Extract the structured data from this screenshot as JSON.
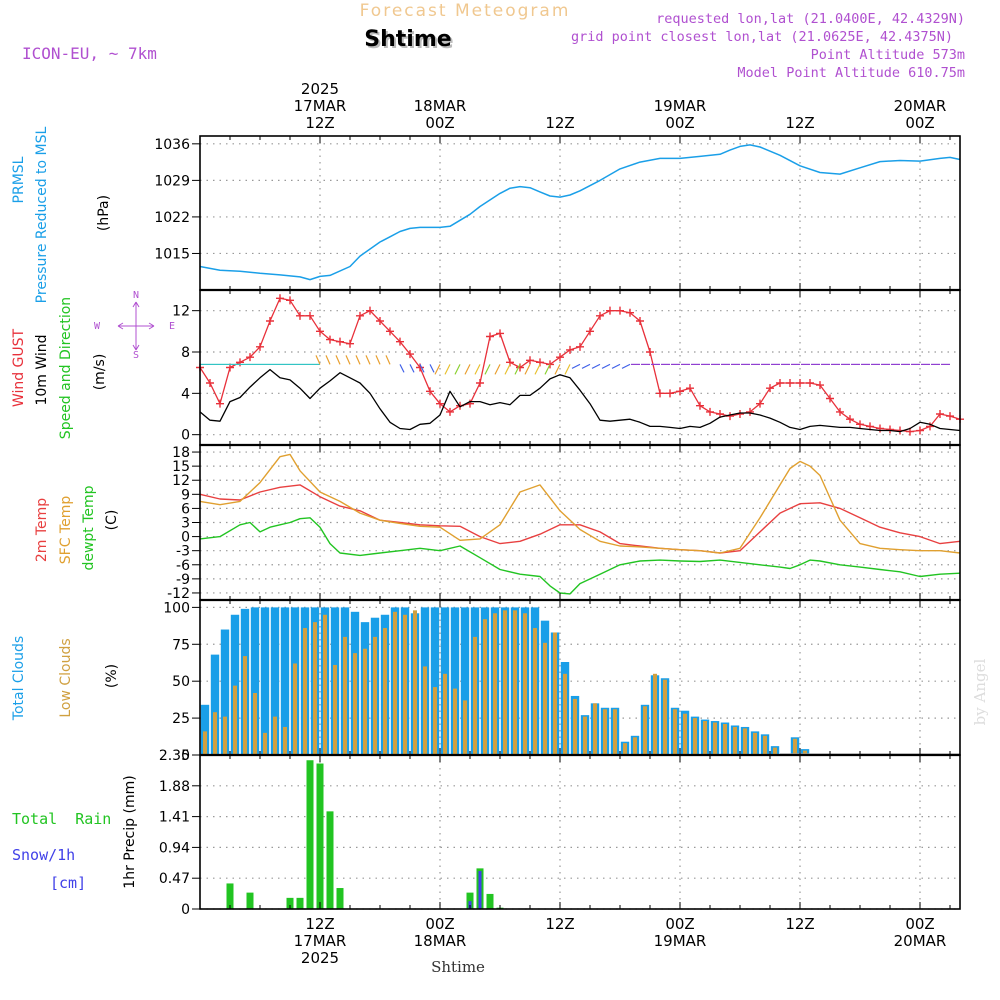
{
  "header": {
    "title": "Forecast Meteogram",
    "location": "Shtime",
    "model": "ICON-EU, ~ 7km",
    "info_lines": [
      "requested lon,lat (21.0400E, 42.4329N)",
      "grid point closest lon,lat (21.0625E, 42.4375N)",
      "Point Altitude 573m",
      "Model Point Altitude 610.75m"
    ],
    "footer_location": "Shtime",
    "watermark": "by Angel"
  },
  "colors": {
    "pressure": "#1a9fe8",
    "gust": "#e8303a",
    "wind": "#000000",
    "temp2m": "#e84040",
    "sfc": "#e0a030",
    "dewpt": "#22c422",
    "total_clouds": "#1a9fe8",
    "low_clouds": "#d0a040",
    "rain": "#22c422",
    "snow": "#4040e8",
    "title": "#f0c890",
    "info": "#b050d0"
  },
  "time_axis": {
    "top_labels": [
      {
        "t": 12,
        "lines": [
          "2025",
          "17MAR",
          "12Z"
        ]
      },
      {
        "t": 24,
        "lines": [
          "18MAR",
          "00Z"
        ]
      },
      {
        "t": 36,
        "lines": [
          "12Z"
        ]
      },
      {
        "t": 48,
        "lines": [
          "19MAR",
          "00Z"
        ]
      },
      {
        "t": 60,
        "lines": [
          "12Z"
        ]
      },
      {
        "t": 72,
        "lines": [
          "20MAR",
          "00Z"
        ]
      }
    ],
    "bottom_labels": [
      {
        "t": 12,
        "lines": [
          "12Z",
          "17MAR",
          "2025"
        ]
      },
      {
        "t": 24,
        "lines": [
          "00Z",
          "18MAR"
        ]
      },
      {
        "t": 36,
        "lines": [
          "12Z"
        ]
      },
      {
        "t": 48,
        "lines": [
          "00Z",
          "19MAR"
        ]
      },
      {
        "t": 60,
        "lines": [
          "12Z"
        ]
      },
      {
        "t": 72,
        "lines": [
          "00Z",
          "20MAR"
        ]
      }
    ]
  },
  "chart_data": [
    {
      "type": "line",
      "panel": "pressure",
      "labels": [
        "PRMSL",
        "Pressure Reduced to MSL"
      ],
      "unit": "(hPa)",
      "yticks": [
        1015,
        1022,
        1029,
        1036
      ],
      "ylim": [
        1008,
        1037.5
      ],
      "series": [
        {
          "x": [
            0,
            2,
            4,
            6,
            8,
            10,
            11,
            12,
            13,
            15,
            16,
            18,
            19,
            20,
            21,
            22,
            24,
            25,
            27,
            28,
            30,
            31,
            32,
            33,
            34,
            35,
            36,
            37,
            38,
            40,
            42,
            44,
            46,
            48,
            50,
            52,
            53,
            54,
            55,
            56,
            58,
            60,
            62,
            64,
            66,
            68,
            70,
            72,
            74,
            75,
            76
          ],
          "y": [
            1012.5,
            1011.8,
            1011.6,
            1011.2,
            1010.9,
            1010.5,
            1010.0,
            1010.6,
            1010.8,
            1012.5,
            1014.5,
            1017.2,
            1018.2,
            1019.2,
            1019.8,
            1020.0,
            1020.0,
            1020.2,
            1022.5,
            1024.0,
            1026.5,
            1027.5,
            1027.8,
            1027.6,
            1026.8,
            1026.0,
            1025.8,
            1026.2,
            1027.0,
            1029.0,
            1031.2,
            1032.5,
            1033.2,
            1033.2,
            1033.6,
            1034.0,
            1034.8,
            1035.5,
            1035.8,
            1035.4,
            1033.8,
            1031.8,
            1030.5,
            1030.2,
            1031.4,
            1032.6,
            1032.8,
            1032.7,
            1033.2,
            1033.4,
            1033.0
          ]
        }
      ]
    },
    {
      "type": "line",
      "panel": "wind",
      "labels": [
        "Wind GUST",
        "10m Wind",
        "Speed and Direction"
      ],
      "unit": "(m/s)",
      "compass": [
        "N",
        "W",
        "E",
        "S"
      ],
      "yticks": [
        0,
        4,
        8,
        12
      ],
      "ylim": [
        -1,
        14
      ],
      "series": [
        {
          "name": "Wind GUST",
          "x": [
            0,
            1,
            2,
            3,
            4,
            5,
            6,
            7,
            8,
            9,
            10,
            11,
            12,
            13,
            14,
            15,
            16,
            17,
            18,
            19,
            20,
            21,
            22,
            23,
            24,
            25,
            26,
            27,
            28,
            29,
            30,
            31,
            32,
            33,
            34,
            35,
            36,
            37,
            38,
            39,
            40,
            41,
            42,
            43,
            44,
            45,
            46,
            47,
            48,
            49,
            50,
            51,
            52,
            53,
            54,
            55,
            56,
            57,
            58,
            59,
            60,
            61,
            62,
            63,
            64,
            65,
            66,
            67,
            68,
            69,
            70,
            71,
            72,
            73,
            74,
            75,
            76
          ],
          "y": [
            6.5,
            5.0,
            3.0,
            6.5,
            7.0,
            7.5,
            8.5,
            11.0,
            13.2,
            13.0,
            11.5,
            11.5,
            10.0,
            9.2,
            9.0,
            8.8,
            11.5,
            12.0,
            11.0,
            10.0,
            9.0,
            7.8,
            6.5,
            4.2,
            3.0,
            2.2,
            2.8,
            3.0,
            5.0,
            9.5,
            9.8,
            7.0,
            6.5,
            7.2,
            7.0,
            6.8,
            7.5,
            8.2,
            8.5,
            10.0,
            11.5,
            12.0,
            12.0,
            11.8,
            11.0,
            8.0,
            4.0,
            4.0,
            4.2,
            4.5,
            2.8,
            2.2,
            2.0,
            1.8,
            2.0,
            2.2,
            3.0,
            4.5,
            5.0,
            5.0,
            5.0,
            5.0,
            4.8,
            3.5,
            2.2,
            1.5,
            1.0,
            0.8,
            0.6,
            0.5,
            0.4,
            0.3,
            0.4,
            0.8,
            2.0,
            1.8,
            1.5
          ]
        },
        {
          "name": "10m Wind",
          "x": [
            0,
            1,
            2,
            3,
            4,
            5,
            6,
            7,
            8,
            9,
            10,
            11,
            12,
            13,
            14,
            15,
            16,
            17,
            18,
            19,
            20,
            21,
            22,
            23,
            24,
            25,
            26,
            27,
            28,
            29,
            30,
            31,
            32,
            33,
            34,
            35,
            36,
            37,
            38,
            39,
            40,
            41,
            42,
            43,
            44,
            45,
            46,
            47,
            48,
            49,
            50,
            51,
            52,
            53,
            54,
            55,
            56,
            57,
            58,
            59,
            60,
            61,
            62,
            63,
            64,
            65,
            66,
            67,
            68,
            69,
            70,
            71,
            72,
            73,
            74,
            75,
            76
          ],
          "y": [
            2.2,
            1.4,
            1.3,
            3.2,
            3.6,
            4.6,
            5.5,
            6.3,
            5.5,
            5.3,
            4.5,
            3.5,
            4.5,
            5.2,
            6.0,
            5.5,
            5.0,
            4.0,
            2.5,
            1.2,
            0.6,
            0.5,
            1.0,
            1.1,
            1.9,
            4.2,
            2.7,
            3.2,
            3.2,
            2.9,
            3.1,
            2.9,
            3.8,
            3.8,
            4.5,
            5.4,
            5.8,
            5.5,
            4.3,
            3.0,
            1.4,
            1.3,
            1.4,
            1.5,
            1.2,
            0.8,
            0.8,
            0.7,
            0.6,
            0.8,
            0.7,
            1.1,
            1.7,
            1.9,
            2.1,
            2.1,
            1.9,
            1.6,
            1.2,
            0.7,
            0.5,
            0.8,
            0.9,
            0.8,
            0.7,
            0.7,
            0.6,
            0.5,
            0.4,
            0.4,
            0.3,
            0.6,
            1.2,
            1.0,
            0.6,
            0.5,
            0.4
          ]
        }
      ]
    },
    {
      "type": "line",
      "panel": "temperature",
      "labels": [
        "2m Temp",
        "SFC Temp",
        "dewpt Temp"
      ],
      "unit": "(C)",
      "yticks": [
        -12,
        -9,
        -6,
        -3,
        0,
        3,
        6,
        9,
        12,
        15,
        18
      ],
      "ylim": [
        -13.5,
        19.5
      ],
      "series": [
        {
          "name": "2m Temp",
          "x": [
            0,
            2,
            4,
            6,
            8,
            10,
            12,
            14,
            16,
            18,
            20,
            22,
            24,
            26,
            28,
            30,
            32,
            34,
            36,
            38,
            40,
            42,
            44,
            46,
            48,
            50,
            52,
            54,
            56,
            58,
            60,
            62,
            64,
            66,
            68,
            70,
            72,
            74,
            76
          ],
          "y": [
            9.0,
            8.0,
            7.8,
            9.5,
            10.5,
            11.0,
            8.5,
            6.5,
            5.5,
            3.5,
            3.0,
            2.5,
            2.3,
            2.2,
            0,
            -1.5,
            -1.0,
            0.5,
            2.5,
            2.5,
            1.0,
            -1.5,
            -2.0,
            -2.5,
            -2.8,
            -3.0,
            -3.5,
            -3.0,
            1.0,
            5.0,
            7.0,
            7.2,
            6.0,
            4.0,
            2.0,
            0.8,
            0.0,
            -1.5,
            -1.0
          ]
        },
        {
          "name": "SFC Temp",
          "x": [
            0,
            2,
            4,
            6,
            8,
            9,
            10,
            12,
            14,
            16,
            18,
            20,
            22,
            24,
            26,
            28,
            30,
            31,
            32,
            34,
            36,
            38,
            40,
            42,
            44,
            46,
            48,
            50,
            52,
            54,
            56,
            58,
            59,
            60,
            61,
            62,
            64,
            66,
            68,
            70,
            72,
            74,
            76
          ],
          "y": [
            7.5,
            6.8,
            7.5,
            11.5,
            17.0,
            17.5,
            14.0,
            9.5,
            7.5,
            5.0,
            3.5,
            2.8,
            2.2,
            2.0,
            -0.8,
            -0.5,
            2.5,
            6.0,
            9.5,
            11.0,
            5.5,
            1.5,
            -1.0,
            -2.0,
            -2.2,
            -2.5,
            -2.8,
            -3.0,
            -3.5,
            -2.5,
            4.0,
            11.0,
            14.5,
            16.0,
            15.0,
            13.0,
            3.5,
            -1.5,
            -2.5,
            -2.8,
            -3.0,
            -3.0,
            -3.5
          ]
        },
        {
          "name": "dewpt Temp",
          "x": [
            0,
            2,
            4,
            5,
            6,
            7,
            8,
            9,
            10,
            11,
            12,
            13,
            14,
            16,
            18,
            20,
            22,
            24,
            26,
            28,
            30,
            32,
            34,
            35,
            36,
            37,
            38,
            40,
            42,
            44,
            46,
            48,
            50,
            52,
            54,
            56,
            58,
            59,
            60,
            61,
            62,
            64,
            66,
            68,
            70,
            72,
            74,
            76
          ],
          "y": [
            -0.5,
            0.0,
            2.5,
            3.0,
            1.0,
            2.0,
            2.5,
            3.0,
            3.8,
            4.0,
            2.0,
            -1.5,
            -3.5,
            -4.0,
            -3.5,
            -3.0,
            -2.5,
            -3.0,
            -2.0,
            -4.5,
            -7.0,
            -8.0,
            -8.5,
            -10.5,
            -12.0,
            -12.2,
            -10.0,
            -8.0,
            -6.0,
            -5.2,
            -5.0,
            -5.2,
            -5.3,
            -5.0,
            -5.5,
            -6.0,
            -6.5,
            -6.8,
            -6.0,
            -5.0,
            -5.2,
            -6.0,
            -6.5,
            -7.0,
            -7.5,
            -8.5,
            -8.0,
            -7.8
          ]
        }
      ]
    },
    {
      "type": "bar",
      "panel": "clouds",
      "labels": [
        "Total Clouds",
        "Low Clouds"
      ],
      "unit": "(%)",
      "yticks": [
        0,
        25,
        50,
        75,
        100
      ],
      "ylim": [
        0,
        105
      ],
      "x": [
        0,
        1,
        2,
        3,
        4,
        5,
        6,
        7,
        8,
        9,
        10,
        11,
        12,
        13,
        14,
        15,
        16,
        17,
        18,
        19,
        20,
        21,
        22,
        23,
        24,
        25,
        26,
        27,
        28,
        29,
        30,
        31,
        32,
        33,
        34,
        35,
        36,
        37,
        38,
        39,
        40,
        41,
        42,
        43,
        44,
        45,
        46,
        47,
        48,
        49,
        50,
        51,
        52,
        53,
        54,
        55,
        56,
        57,
        58,
        59,
        60,
        61,
        62,
        63,
        64,
        65,
        66,
        67,
        68,
        69,
        70,
        71,
        72,
        73,
        74,
        75
      ],
      "series": [
        {
          "name": "Total Clouds",
          "values": [
            34,
            68,
            85,
            95,
            99,
            100,
            100,
            100,
            100,
            100,
            100,
            100,
            100,
            100,
            100,
            97,
            90,
            93,
            95,
            100,
            100,
            96,
            100,
            100,
            100,
            100,
            100,
            100,
            100,
            100,
            100,
            100,
            100,
            100,
            91,
            83,
            63,
            40,
            27,
            35,
            32,
            32,
            9,
            13,
            34,
            54,
            52,
            32,
            30,
            26,
            24,
            23,
            22,
            20,
            19,
            16,
            14,
            6,
            0,
            12,
            4,
            0,
            0,
            0,
            0,
            0,
            0,
            0,
            0,
            0,
            0,
            0,
            0,
            0,
            0,
            0
          ]
        },
        {
          "name": "Low Clouds",
          "values": [
            16,
            29,
            26,
            47,
            67,
            42,
            15,
            26,
            19,
            62,
            86,
            90,
            95,
            61,
            80,
            69,
            72,
            80,
            86,
            97,
            95,
            98,
            60,
            46,
            55,
            45,
            37,
            80,
            92,
            96,
            98,
            98,
            96,
            86,
            76,
            83,
            55,
            38,
            26,
            35,
            31,
            31,
            8,
            12,
            33,
            55,
            51,
            31,
            28,
            25,
            23,
            22,
            21,
            19,
            18,
            15,
            13,
            5,
            0,
            11,
            3,
            0,
            0,
            0,
            0,
            0,
            0,
            0,
            0,
            0,
            0,
            0,
            0,
            0,
            0,
            0
          ]
        }
      ]
    },
    {
      "type": "bar",
      "panel": "precip",
      "labels": [
        "Total  Rain",
        "Snow/1h",
        "[cm]"
      ],
      "unit": "1hr Precip (mm)",
      "ytick_labels": [
        "0",
        "0.47",
        "0.94",
        "1.41",
        "1.88",
        "2.35"
      ],
      "ylim": [
        0,
        2.35
      ],
      "x": [
        3,
        5,
        9,
        10,
        11,
        12,
        13,
        14,
        27,
        28,
        29,
        30
      ],
      "series": [
        {
          "name": "Total Rain",
          "values": [
            0.39,
            0.25,
            0.17,
            0.17,
            2.27,
            2.22,
            1.49,
            0.32,
            0.25,
            0.62,
            0.23,
            0.02
          ]
        },
        {
          "name": "Snow/1h",
          "values": [
            0,
            0,
            0,
            0,
            0,
            0,
            0,
            0,
            0.12,
            0.58,
            0,
            0
          ]
        }
      ]
    }
  ]
}
